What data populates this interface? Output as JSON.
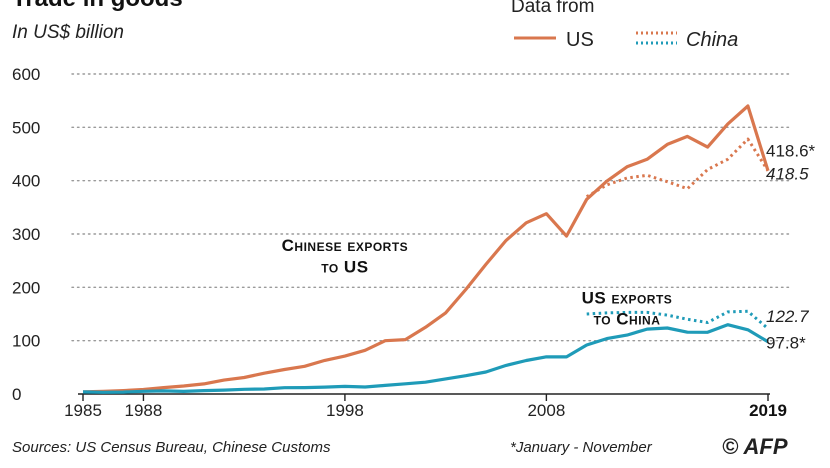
{
  "chart_data": {
    "type": "line",
    "title": "Trade in goods",
    "subtitle": "In US$ billion",
    "ylim": [
      0,
      600
    ],
    "y_ticks": [
      "0",
      "100",
      "200",
      "300",
      "400",
      "500",
      "600"
    ],
    "x_ticks": [
      "1985",
      "1988",
      "1998",
      "2008",
      "2019"
    ],
    "xlim": [
      1985,
      2019
    ],
    "legend_title": "Data from",
    "legend": [
      {
        "label": "US",
        "style": "solid"
      },
      {
        "label": "China",
        "style": "dotted"
      }
    ],
    "series": [
      {
        "name": "Chinese exports to US",
        "source": "US",
        "color": "#D9774E",
        "dashed": false,
        "x": [
          1985,
          1986,
          1987,
          1988,
          1989,
          1990,
          1991,
          1992,
          1993,
          1994,
          1995,
          1996,
          1997,
          1998,
          1999,
          2000,
          2001,
          2002,
          2003,
          2004,
          2005,
          2006,
          2007,
          2008,
          2009,
          2010,
          2011,
          2012,
          2013,
          2014,
          2015,
          2016,
          2017,
          2018,
          2019
        ],
        "y": [
          3.9,
          4.8,
          6.3,
          8.5,
          12,
          15,
          19,
          26,
          31,
          39,
          46,
          52,
          63,
          71,
          82,
          100,
          102,
          125,
          152,
          196,
          243,
          288,
          321,
          338,
          296,
          365,
          399,
          426,
          440,
          468,
          483,
          463,
          506,
          540,
          418.6
        ]
      },
      {
        "name": "Chinese exports to US",
        "source": "China",
        "color": "#D9774E",
        "dashed": true,
        "x": [
          2010,
          2011,
          2012,
          2013,
          2014,
          2015,
          2016,
          2017,
          2018,
          2019
        ],
        "y": [
          370,
          392,
          405,
          410,
          398,
          385,
          421,
          440,
          478,
          418.5
        ]
      },
      {
        "name": "US exports to China",
        "source": "US",
        "color": "#1F9BB8",
        "dashed": false,
        "x": [
          1985,
          1986,
          1987,
          1988,
          1989,
          1990,
          1991,
          1992,
          1993,
          1994,
          1995,
          1996,
          1997,
          1998,
          1999,
          2000,
          2001,
          2002,
          2003,
          2004,
          2005,
          2006,
          2007,
          2008,
          2009,
          2010,
          2011,
          2012,
          2013,
          2014,
          2015,
          2016,
          2017,
          2018,
          2019
        ],
        "y": [
          3.9,
          3.1,
          3.5,
          5,
          5.8,
          4.8,
          6.3,
          7.4,
          8.8,
          9.3,
          11.8,
          12,
          12.9,
          14.2,
          13.1,
          16.2,
          19.2,
          22.1,
          28.4,
          34.4,
          41.2,
          53.7,
          62.9,
          69.7,
          69.5,
          91.9,
          103.9,
          110.5,
          121.7,
          123.7,
          115.9,
          115.6,
          129.9,
          120.3,
          97.8
        ]
      },
      {
        "name": "US exports to China",
        "source": "China",
        "color": "#1F9BB8",
        "dashed": true,
        "x": [
          2010,
          2011,
          2012,
          2013,
          2014,
          2015,
          2016,
          2017,
          2018,
          2019
        ],
        "y": [
          150,
          152,
          153,
          153,
          148,
          140,
          134,
          154,
          155,
          122.7
        ]
      }
    ],
    "annotations": [
      {
        "text": "Chinese exports",
        "x": 1998,
        "y": 268
      },
      {
        "text": "to US",
        "x": 1998,
        "y": 228
      },
      {
        "text": "US exports",
        "x": 2012,
        "y": 170
      },
      {
        "text": "to China",
        "x": 2012,
        "y": 130
      }
    ],
    "end_labels": [
      {
        "text": "418.6*",
        "x": 2019,
        "y": 445,
        "italic": false
      },
      {
        "text": "418.5",
        "x": 2019,
        "y": 402,
        "italic": true
      },
      {
        "text": "122.7",
        "x": 2019,
        "y": 135,
        "italic": true
      },
      {
        "text": "97.8*",
        "x": 2019,
        "y": 85,
        "italic": false
      }
    ],
    "grid": true
  },
  "footer": {
    "sources": "Sources: US Census Bureau, Chinese Customs",
    "note": "*January - November",
    "logo": "© AFP"
  }
}
